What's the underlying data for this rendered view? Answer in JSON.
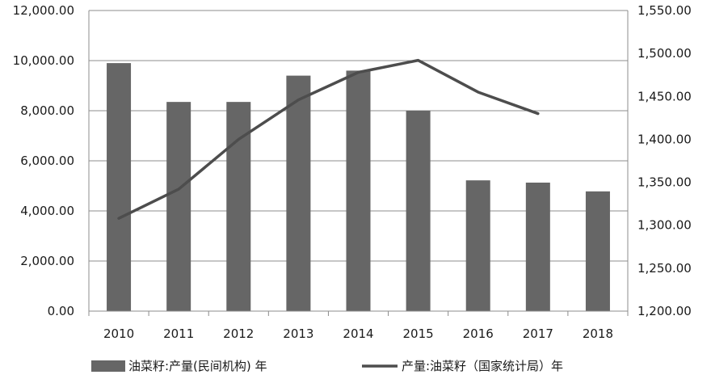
{
  "chart_data": {
    "type": "bar",
    "categories": [
      "2010",
      "2011",
      "2012",
      "2013",
      "2014",
      "2015",
      "2016",
      "2017",
      "2018"
    ],
    "series": [
      {
        "name": "油菜籽:产量(民间机构) 年",
        "type": "bar",
        "axis": "left",
        "color": "#666666",
        "values": [
          9900,
          8350,
          8350,
          9400,
          9600,
          8000,
          5220,
          5130,
          4780
        ]
      },
      {
        "name": "产量:油菜籽（国家统计局）年",
        "type": "line",
        "axis": "right",
        "color": "#4d4d4d",
        "values": [
          1308,
          1342,
          1400,
          1446,
          1478,
          1492,
          1455,
          1430,
          null
        ]
      }
    ],
    "y_left": {
      "min": 0,
      "max": 12000,
      "step": 2000,
      "tick_labels": [
        "0.00",
        "2,000.00",
        "4,000.00",
        "6,000.00",
        "8,000.00",
        "10,000.00",
        "12,000.00"
      ]
    },
    "y_right": {
      "min": 1200,
      "max": 1550,
      "step": 50,
      "tick_labels": [
        "1,200.00",
        "1,250.00",
        "1,300.00",
        "1,350.00",
        "1,400.00",
        "1,450.00",
        "1,500.00",
        "1,550.00"
      ]
    },
    "grid": true,
    "legend_position": "bottom",
    "title": "",
    "xlabel": "",
    "ylabel": ""
  }
}
